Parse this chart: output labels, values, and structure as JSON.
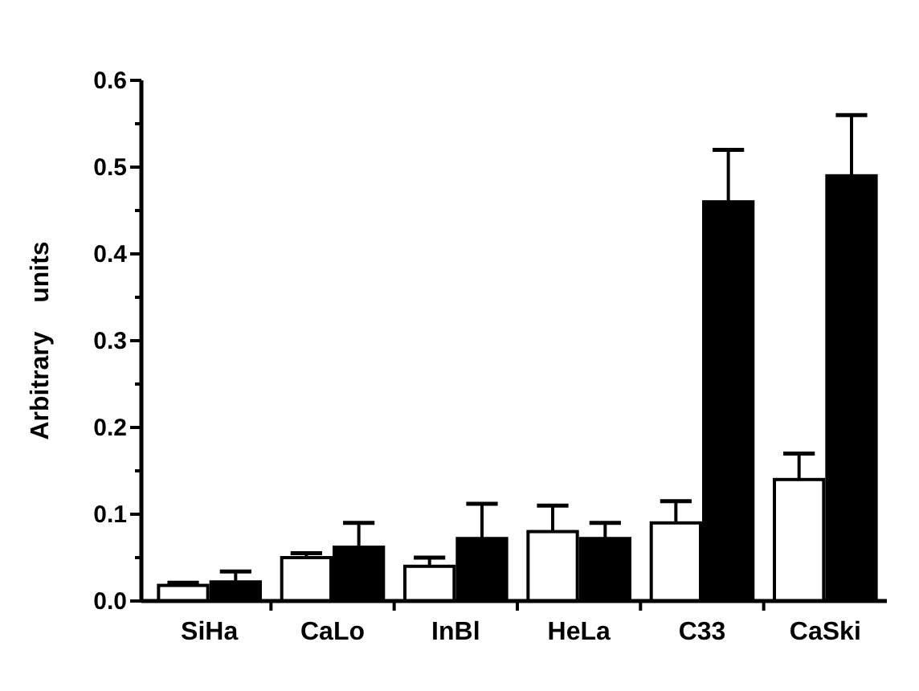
{
  "chart_data": {
    "type": "bar",
    "ylabel": "Arbitrary    units",
    "categories": [
      "SiHa",
      "CaLo",
      "InBl",
      "HeLa",
      "C33",
      "CaSki"
    ],
    "series": [
      {
        "color": "#ffffff",
        "values": [
          0.018,
          0.05,
          0.04,
          0.08,
          0.09,
          0.14
        ],
        "errors": [
          [
            0.018,
            0.021
          ],
          [
            0.05,
            0.055
          ],
          [
            0.04,
            0.05
          ],
          [
            0.08,
            0.11
          ],
          [
            0.09,
            0.115
          ],
          [
            0.14,
            0.17
          ]
        ]
      },
      {
        "color": "#000000",
        "values": [
          0.022,
          0.062,
          0.072,
          0.072,
          0.46,
          0.49
        ],
        "errors": [
          [
            0.022,
            0.034
          ],
          [
            0.062,
            0.09
          ],
          [
            0.072,
            0.112
          ],
          [
            0.072,
            0.09
          ],
          [
            0.46,
            0.52
          ],
          [
            0.49,
            0.56
          ]
        ]
      }
    ],
    "ylim": [
      0,
      0.6
    ],
    "yticks": [
      {
        "value": 0,
        "label": "0.0"
      },
      {
        "value": 0.05,
        "label": null
      },
      {
        "value": 0.1,
        "label": "0.1"
      },
      {
        "value": 0.15,
        "label": null
      },
      {
        "value": 0.2,
        "label": "0.2"
      },
      {
        "value": 0.25,
        "label": null
      },
      {
        "value": 0.3,
        "label": "0.3"
      },
      {
        "value": 0.35,
        "label": null
      },
      {
        "value": 0.4,
        "label": "0.4"
      },
      {
        "value": 0.45,
        "label": null
      },
      {
        "value": 0.5,
        "label": "0.5"
      },
      {
        "value": 0.55,
        "label": null
      },
      {
        "value": 0.6,
        "label": "0.6"
      }
    ],
    "grid": false
  }
}
